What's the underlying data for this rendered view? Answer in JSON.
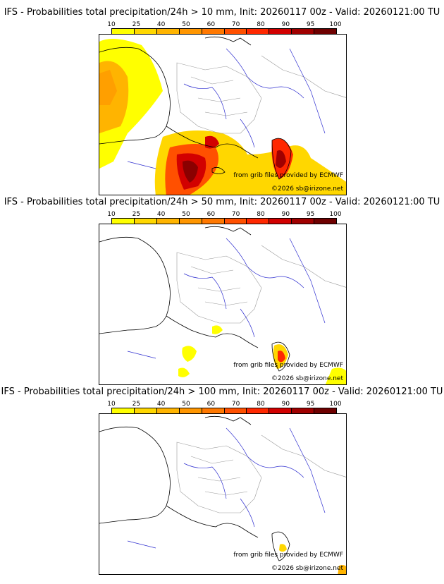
{
  "colorbar": {
    "ticks": [
      "10",
      "25",
      "40",
      "50",
      "60",
      "70",
      "80",
      "90",
      "95",
      "100"
    ],
    "colors": [
      "#ffff00",
      "#ffd700",
      "#ffb400",
      "#ff9600",
      "#ff7800",
      "#ff5000",
      "#ff2800",
      "#d20000",
      "#a00000",
      "#6e0000"
    ]
  },
  "panels": [
    {
      "title": "IFS - Probabilities total precipitation/24h > 10 mm, Init: 20260117 00z - Valid: 20260121:00 TU",
      "credit_source": "from grib files provided by ECMWF",
      "credit_copyright": "©2026 sb@irizone.net"
    },
    {
      "title": "IFS - Probabilities total precipitation/24h > 50 mm, Init: 20260117 00z - Valid: 20260121:00 TU",
      "credit_source": "from grib files provided by ECMWF",
      "credit_copyright": "©2026 sb@irizone.net"
    },
    {
      "title": "IFS - Probabilities total precipitation/24h > 100 mm, Init: 20260117 00z - Valid: 20260121:00 TU",
      "credit_source": "from grib files provided by ECMWF",
      "credit_copyright": "©2026 sb@irizone.net"
    }
  ]
}
